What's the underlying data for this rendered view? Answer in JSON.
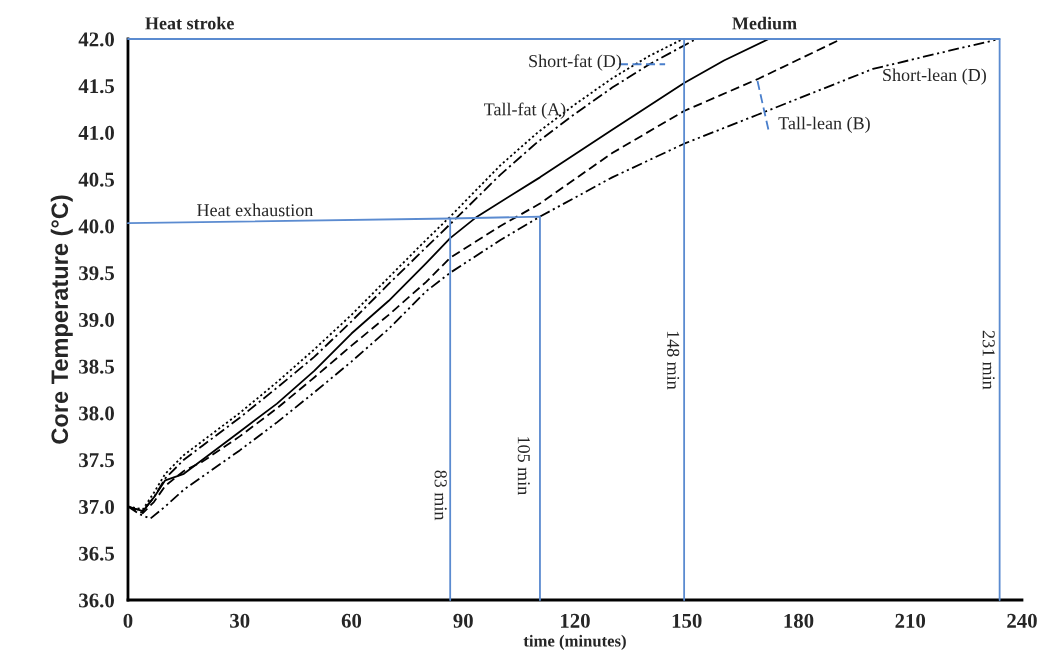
{
  "chart_data": {
    "type": "line",
    "xlabel": "time (minutes)",
    "ylabel": "Core Temperature (°C)",
    "xlim": [
      0,
      240
    ],
    "ylim": [
      36,
      42
    ],
    "xticks": [
      0,
      30,
      60,
      90,
      120,
      150,
      180,
      210,
      240
    ],
    "yticks": [
      {
        "value": 36,
        "label": "36.0"
      },
      {
        "value": 36.5,
        "label": "36.5"
      },
      {
        "value": 37,
        "label": "37.0"
      },
      {
        "value": 37.5,
        "label": "37.5"
      },
      {
        "value": 38,
        "label": "38.0"
      },
      {
        "value": 38.5,
        "label": "38.5"
      },
      {
        "value": 39,
        "label": "39.0"
      },
      {
        "value": 39.5,
        "label": "39.5"
      },
      {
        "value": 40,
        "label": "40.0"
      },
      {
        "value": 40.5,
        "label": "40.5"
      },
      {
        "value": 41,
        "label": "41.0"
      },
      {
        "value": 41.5,
        "label": "41.5"
      },
      {
        "value": 42,
        "label": "42.0"
      }
    ],
    "grid": false,
    "legend": false,
    "series": [
      {
        "color": "#000000",
        "line_style": "dotted",
        "x": [
          0,
          4,
          7,
          10,
          15,
          20,
          30,
          40,
          50,
          60,
          70,
          80,
          86.5,
          100,
          110,
          120,
          130,
          140,
          149
        ],
        "values": [
          37.0,
          36.97,
          37.15,
          37.35,
          37.55,
          37.7,
          38.0,
          38.33,
          38.68,
          39.05,
          39.45,
          39.85,
          40.1,
          40.65,
          41.0,
          41.3,
          41.58,
          41.82,
          42.0
        ]
      },
      {
        "color": "#000000",
        "line_style": "dashdot",
        "x": [
          0,
          4,
          7,
          10,
          15,
          20,
          30,
          40,
          50,
          60,
          70,
          80,
          86.5,
          100,
          110,
          120,
          130,
          140,
          152.5
        ],
        "values": [
          37.0,
          36.95,
          37.1,
          37.3,
          37.5,
          37.65,
          37.95,
          38.27,
          38.6,
          38.98,
          39.38,
          39.77,
          40.02,
          40.55,
          40.9,
          41.2,
          41.48,
          41.73,
          42.0
        ]
      },
      {
        "color": "#000000",
        "line_style": "solid",
        "x": [
          0,
          4,
          7,
          10,
          15,
          20,
          30,
          40,
          50,
          60,
          70,
          80,
          86.5,
          93.7,
          110.6,
          130,
          149.3,
          160,
          172
        ],
        "values": [
          37.0,
          36.95,
          37.1,
          37.28,
          37.35,
          37.5,
          37.8,
          38.1,
          38.45,
          38.85,
          39.2,
          39.6,
          39.87,
          40.1,
          40.52,
          41.03,
          41.53,
          41.77,
          42.0
        ]
      },
      {
        "color": "#000000",
        "line_style": "dashed",
        "x": [
          0,
          4,
          7,
          10,
          15,
          20,
          30,
          40,
          50,
          60,
          70,
          80,
          86.5,
          100,
          110.6,
          130,
          149.3,
          169,
          180,
          191.5
        ],
        "values": [
          37.0,
          36.93,
          37.05,
          37.22,
          37.38,
          37.48,
          37.75,
          38.05,
          38.38,
          38.72,
          39.05,
          39.4,
          39.66,
          40.0,
          40.24,
          40.78,
          41.23,
          41.57,
          41.78,
          42.0
        ]
      },
      {
        "color": "#000000",
        "line_style": "dashdotdot",
        "x": [
          0,
          3,
          6,
          10,
          15,
          20,
          30,
          40,
          50,
          60,
          70,
          80,
          86.5,
          100,
          110.6,
          130,
          149.3,
          169,
          200,
          220,
          234
        ],
        "values": [
          37.0,
          36.92,
          36.87,
          37.0,
          37.18,
          37.32,
          37.6,
          37.9,
          38.22,
          38.55,
          38.9,
          39.3,
          39.5,
          39.85,
          40.1,
          40.52,
          40.88,
          41.19,
          41.68,
          41.87,
          42.0
        ]
      },
      {
        "color": "#5b8bd0",
        "line_style": "solid",
        "x": [
          0,
          86.5,
          110.6,
          110.6
        ],
        "values": [
          40.03,
          40.08,
          40.1,
          36.0
        ]
      },
      {
        "color": "#5b8bd0",
        "line_style": "solid",
        "x": [
          86.5,
          86.5
        ],
        "values": [
          40.08,
          36.0
        ]
      },
      {
        "color": "#5b8bd0",
        "line_style": "solid",
        "x": [
          0,
          234
        ],
        "values": [
          42.0,
          42.0
        ]
      },
      {
        "color": "#4a7fcc",
        "line_style": "dashed",
        "x": [
          131.8,
          144.2
        ],
        "values": [
          41.73,
          41.73
        ]
      },
      {
        "color": "#4a7fcc",
        "line_style": "dashed",
        "x": [
          169.0,
          172.1
        ],
        "values": [
          41.55,
          41.0
        ]
      }
    ],
    "ref_lines": [
      {
        "axis": "x",
        "value": 149.3,
        "label": "148 min",
        "color": "#5b8bd0"
      },
      {
        "axis": "x",
        "value": 234,
        "label": "231 min",
        "color": "#5b8bd0"
      }
    ],
    "annotations": [
      "Heat stroke",
      "Medium",
      "Heat exhaustion",
      "Short-fat (D)",
      "Tall-fat (A)",
      "Tall-lean (B)",
      "Short-lean (D)",
      "83 min",
      "105 min"
    ]
  }
}
